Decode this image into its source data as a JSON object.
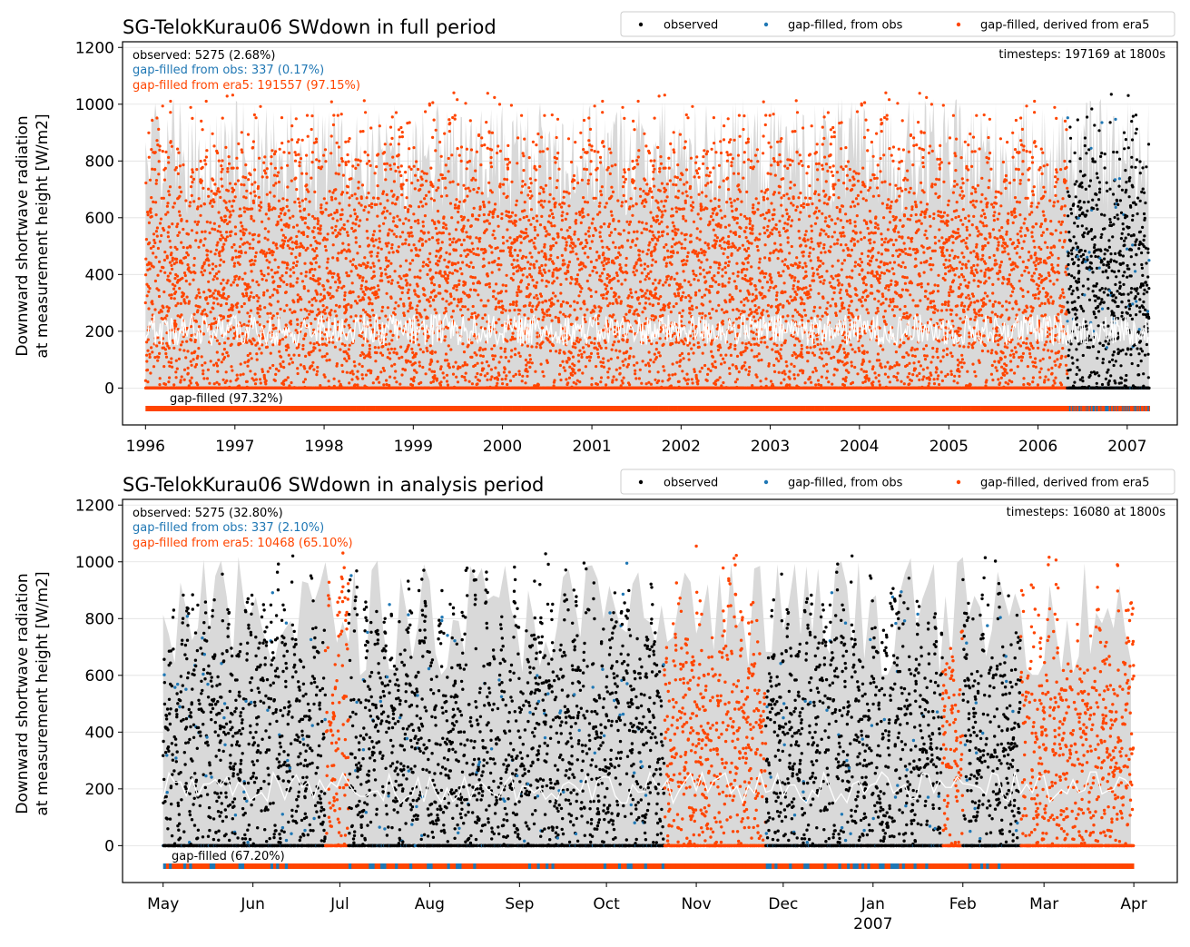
{
  "colors": {
    "observed": "#000000",
    "gapfilled_obs": "#1f77b4",
    "gapfilled_era5": "#ff4500",
    "band": "#d9d9d9",
    "mean_line": "#ffffff",
    "grid": "#e0e0e0"
  },
  "legend": {
    "observed": "observed",
    "gapfilled_obs": "gap-filled, from obs",
    "gapfilled_era5": "gap-filled, derived from era5"
  },
  "ylabel_line1": "Downward shortwave radiation",
  "ylabel_line2": "at measurement height [W/m2]",
  "chart_data": [
    {
      "type": "scatter",
      "title": "SG-TelokKurau06 SWdown in full period",
      "ylabel": "Downward shortwave radiation at measurement height [W/m2]",
      "ylim": [
        -130,
        1220
      ],
      "yticks": [
        0,
        200,
        400,
        600,
        800,
        1000,
        1200
      ],
      "x_range": [
        "1995-09-29",
        "2007-07-25"
      ],
      "xticks": [
        {
          "date": "1996-01-01",
          "label": "1996"
        },
        {
          "date": "1997-01-01",
          "label": "1997"
        },
        {
          "date": "1998-01-01",
          "label": "1998"
        },
        {
          "date": "1999-01-01",
          "label": "1999"
        },
        {
          "date": "2000-01-01",
          "label": "2000"
        },
        {
          "date": "2001-01-01",
          "label": "2001"
        },
        {
          "date": "2002-01-01",
          "label": "2002"
        },
        {
          "date": "2003-01-01",
          "label": "2003"
        },
        {
          "date": "2004-01-01",
          "label": "2004"
        },
        {
          "date": "2005-01-01",
          "label": "2005"
        },
        {
          "date": "2006-01-01",
          "label": "2006"
        },
        {
          "date": "2007-01-01",
          "label": "2007"
        }
      ],
      "xticks_sub": [],
      "stats": {
        "observed": "observed: 5275 (2.68%)",
        "gapfilled_obs": "gap-filled from obs: 337 (0.17%)",
        "gapfilled_era5": "gap-filled from era5: 191557 (97.15%)",
        "timesteps": "timesteps: 197169 at 1800s",
        "gapfilled_total": "gap-filled (97.32%)"
      },
      "legend_position": "upper-right",
      "grid": true,
      "data_start": "1996-01-01",
      "data_end": "2007-03-31",
      "obs_start": "2006-05-01",
      "series": [
        {
          "name": "observed",
          "color": "#000000",
          "count": 5275
        },
        {
          "name": "gap-filled, from obs",
          "color": "#1f77b4",
          "count": 337
        },
        {
          "name": "gap-filled, derived from era5",
          "color": "#ff4500",
          "count": 191557
        }
      ],
      "y_max_observed": 1080
    },
    {
      "type": "scatter",
      "title": "SG-TelokKurau06 SWdown in analysis period",
      "ylabel": "Downward shortwave radiation at measurement height [W/m2]",
      "ylim": [
        -130,
        1220
      ],
      "yticks": [
        0,
        200,
        400,
        600,
        800,
        1000,
        1200
      ],
      "x_range": [
        "2006-04-17",
        "2007-04-16"
      ],
      "xticks": [
        {
          "date": "2006-05-01",
          "label": "May"
        },
        {
          "date": "2006-06-01",
          "label": "Jun"
        },
        {
          "date": "2006-07-01",
          "label": "Jul"
        },
        {
          "date": "2006-08-01",
          "label": "Aug"
        },
        {
          "date": "2006-09-01",
          "label": "Sep"
        },
        {
          "date": "2006-10-01",
          "label": "Oct"
        },
        {
          "date": "2006-11-01",
          "label": "Nov"
        },
        {
          "date": "2006-12-01",
          "label": "Dec"
        },
        {
          "date": "2007-01-01",
          "label": "Jan"
        },
        {
          "date": "2007-02-01",
          "label": "Feb"
        },
        {
          "date": "2007-03-01",
          "label": "Mar"
        },
        {
          "date": "2007-04-01",
          "label": "Apr"
        }
      ],
      "xticks_sub": [
        {
          "date": "2007-01-01",
          "label": "2007"
        }
      ],
      "stats": {
        "observed": "observed: 5275 (32.80%)",
        "gapfilled_obs": "gap-filled from obs: 337 (2.10%)",
        "gapfilled_era5": "gap-filled from era5: 10468 (65.10%)",
        "timesteps": "timesteps: 16080 at 1800s",
        "gapfilled_total": "gap-filled (67.20%)"
      },
      "legend_position": "upper-right",
      "grid": true,
      "data_start": "2006-05-01",
      "data_end": "2007-03-31",
      "obs_start": "2006-05-01",
      "era5_periods": [
        [
          "2006-06-26",
          "2006-07-03"
        ],
        [
          "2006-10-21",
          "2006-11-24"
        ],
        [
          "2007-01-25",
          "2007-01-31"
        ],
        [
          "2007-02-21",
          "2007-03-31"
        ]
      ],
      "series": [
        {
          "name": "observed",
          "color": "#000000",
          "count": 5275
        },
        {
          "name": "gap-filled, from obs",
          "color": "#1f77b4",
          "count": 337
        },
        {
          "name": "gap-filled, derived from era5",
          "color": "#ff4500",
          "count": 10468
        }
      ],
      "y_max_observed": 1080
    }
  ]
}
